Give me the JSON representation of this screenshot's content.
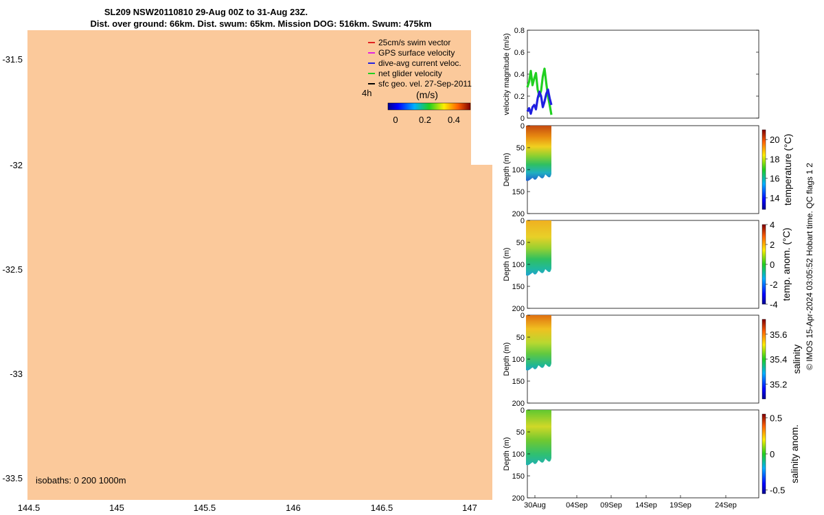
{
  "header": {
    "title_line1": "SL209 NSW20110810 29-Aug 00Z to 31-Aug 23Z.",
    "title_line2": "Dist. over ground: 66km. Dist. swum: 65km. Mission DOG: 516km. Swum: 475km"
  },
  "map": {
    "lat_ticks": [
      "-31.5",
      "-32",
      "-32.5",
      "-33",
      "-33.5"
    ],
    "lon_ticks": [
      "144.5",
      "145",
      "145.5",
      "146",
      "146.5",
      "147"
    ],
    "isobaths_text": "isobaths: 0   200  1000m",
    "legend": [
      {
        "label": "25cm/s swim vector",
        "color": "#e02020"
      },
      {
        "label": "GPS surface velocity",
        "color": "#e020e0"
      },
      {
        "label": "dive-avg current veloc.",
        "color": "#2020e0"
      },
      {
        "label": "net glider velocity",
        "color": "#20d020"
      },
      {
        "label": "sfc geo. vel. 27-Sep-2011",
        "color": "#000000"
      }
    ],
    "time_marker": "4h",
    "colorbar_title": "(m/s)",
    "colorbar_ticks": [
      "0",
      "0.2",
      "0.4"
    ],
    "land_color": "#fbc99b"
  },
  "footer_text": "© IMOS 15-Apr-2024 03:05:52 Hobart time. QC flags 1  2",
  "chart_data": [
    {
      "type": "line",
      "title": "",
      "xlabel": "",
      "ylabel": "velocity magnitude (m/s)",
      "ylim": [
        0,
        0.8
      ],
      "yticks": [
        "0",
        "0.2",
        "0.4",
        "0.6",
        "0.8"
      ],
      "series": [
        {
          "name": "net glider velocity",
          "color": "#20d020",
          "x": [
            0.0,
            0.2,
            0.4,
            0.6,
            0.8,
            1.0,
            1.2,
            1.4,
            1.6,
            1.8,
            2.0,
            2.2,
            2.4,
            2.6,
            2.8
          ],
          "values": [
            0.28,
            0.33,
            0.43,
            0.3,
            0.36,
            0.41,
            0.26,
            0.2,
            0.25,
            0.38,
            0.45,
            0.32,
            0.2,
            0.12,
            0.03
          ]
        },
        {
          "name": "dive-avg current veloc.",
          "color": "#2020e0",
          "x": [
            0.0,
            0.2,
            0.4,
            0.6,
            0.8,
            1.0,
            1.2,
            1.4,
            1.6,
            1.8,
            2.0,
            2.2,
            2.4,
            2.6,
            2.8
          ],
          "values": [
            0.06,
            0.09,
            0.04,
            0.1,
            0.12,
            0.08,
            0.18,
            0.24,
            0.2,
            0.1,
            0.15,
            0.22,
            0.26,
            0.18,
            0.12
          ]
        }
      ]
    },
    {
      "type": "heatmap",
      "ylabel": "Depth (m)",
      "yticks": [
        "0",
        "50",
        "100",
        "150",
        "200"
      ],
      "colorbar_label": "temperature (°C)",
      "colorbar_ticks": [
        "20",
        "18",
        "16",
        "14"
      ],
      "colorbar_range": [
        12.8,
        21
      ]
    },
    {
      "type": "heatmap",
      "ylabel": "Depth (m)",
      "yticks": [
        "0",
        "50",
        "100",
        "150",
        "200"
      ],
      "colorbar_label": "temp. anom. (°C)",
      "colorbar_ticks": [
        "4",
        "2",
        "0",
        "-2",
        "-4"
      ],
      "colorbar_range": [
        -4,
        4
      ]
    },
    {
      "type": "heatmap",
      "ylabel": "Depth (m)",
      "yticks": [
        "0",
        "50",
        "100",
        "150",
        "200"
      ],
      "colorbar_label": "salinity",
      "colorbar_ticks": [
        "35.6",
        "35.4",
        "35.2"
      ],
      "colorbar_range": [
        35.08,
        35.72
      ]
    },
    {
      "type": "heatmap",
      "ylabel": "Depth (m)",
      "yticks": [
        "0",
        "50",
        "100",
        "150",
        "200"
      ],
      "colorbar_label": "salinity anom.",
      "colorbar_ticks": [
        "0.5",
        "0",
        "-0.5"
      ],
      "colorbar_range": [
        -0.55,
        0.55
      ],
      "x_ticks": [
        "30Aug",
        "04Sep",
        "09Sep",
        "14Sep",
        "19Sep",
        "24Sep"
      ]
    }
  ]
}
